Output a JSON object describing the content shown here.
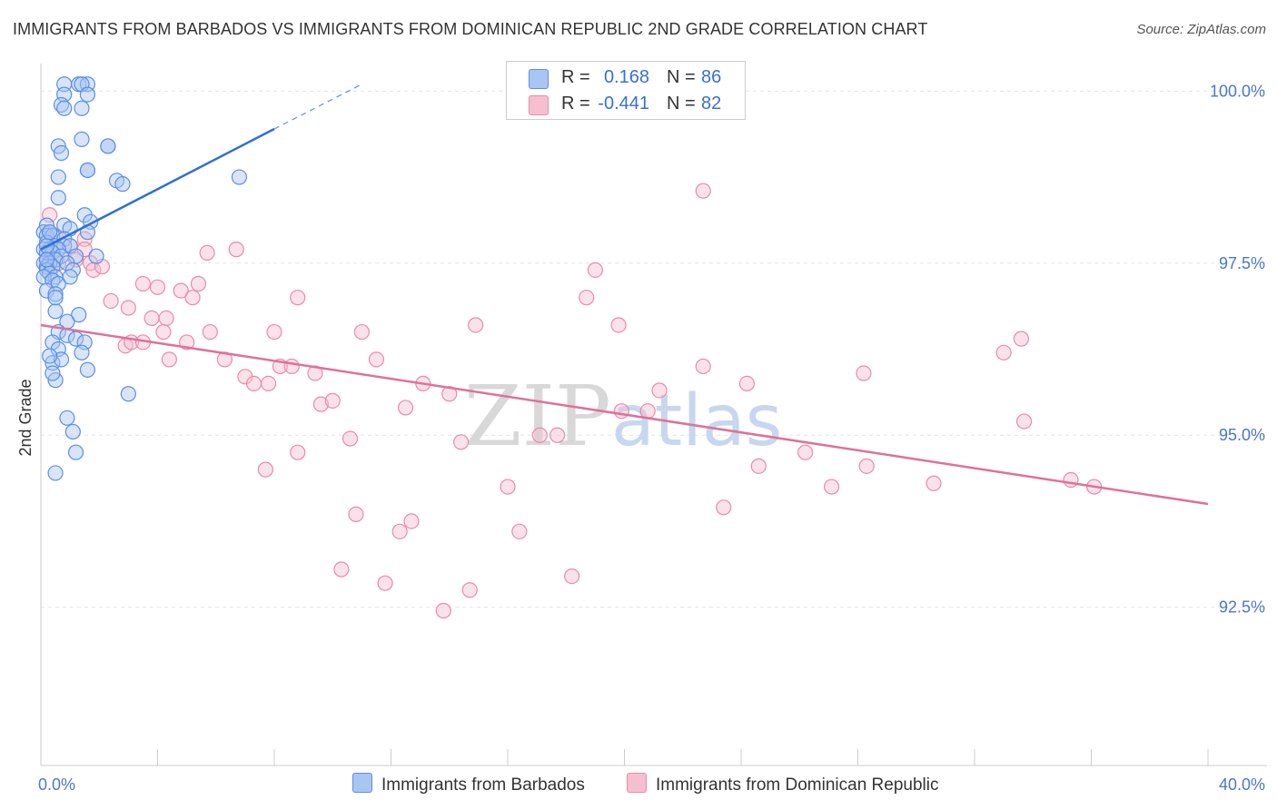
{
  "title": "IMMIGRANTS FROM BARBADOS VS IMMIGRANTS FROM DOMINICAN REPUBLIC 2ND GRADE CORRELATION CHART",
  "source": "Source: ZipAtlas.com",
  "watermark": "ZIPatlas",
  "colors": {
    "blue": "#5b8ee6",
    "blue_fill": "#a9c5f2",
    "blue_line": "#2f6fd6",
    "pink": "#e98aa8",
    "pink_fill": "#f6bfd0",
    "pink_line": "#e0709a",
    "accent_text": "#3a6fd0"
  },
  "legend": {
    "rows": [
      {
        "r_label": "R =",
        "r_value": "0.168",
        "n_label": "N =",
        "n_value": "86",
        "series": "blue"
      },
      {
        "r_label": "R =",
        "r_value": "-0.441",
        "n_label": "N =",
        "n_value": "82",
        "series": "pink"
      }
    ]
  },
  "bottom_legend": {
    "barbados": "Immigrants from Barbados",
    "dominican": "Immigrants from Dominican Republic"
  },
  "chart_data": {
    "type": "scatter",
    "title": "IMMIGRANTS FROM BARBADOS VS IMMIGRANTS FROM DOMINICAN REPUBLIC 2ND GRADE CORRELATION CHART",
    "xlabel": "",
    "ylabel": "2nd Grade",
    "xlim": [
      0,
      40
    ],
    "ylim": [
      90.2,
      100.4
    ],
    "x_tick_labels": [
      "0.0%",
      "40.0%"
    ],
    "y_ticks": [
      92.5,
      95.0,
      97.5,
      100.0
    ],
    "y_tick_labels": [
      "92.5%",
      "95.0%",
      "97.5%",
      "100.0%"
    ],
    "grid": "horizontal dashed",
    "legend_position": "top-center",
    "series": [
      {
        "name": "Immigrants from Barbados",
        "color": "blue",
        "r": 0.168,
        "n": 86,
        "trend": {
          "x": [
            0,
            8.0
          ],
          "y": [
            97.7,
            99.45
          ],
          "dashed_to": [
            11.0,
            100.1
          ]
        },
        "points": [
          [
            0.8,
            100.1
          ],
          [
            1.3,
            100.1
          ],
          [
            1.6,
            100.1
          ],
          [
            1.4,
            100.1
          ],
          [
            1.6,
            99.95
          ],
          [
            0.8,
            99.95
          ],
          [
            0.7,
            99.8
          ],
          [
            0.8,
            99.75
          ],
          [
            1.4,
            99.75
          ],
          [
            1.4,
            99.3
          ],
          [
            2.3,
            99.2
          ],
          [
            2.3,
            99.2
          ],
          [
            0.6,
            99.2
          ],
          [
            0.7,
            99.1
          ],
          [
            1.6,
            98.85
          ],
          [
            1.6,
            98.85
          ],
          [
            0.6,
            98.75
          ],
          [
            2.6,
            98.7
          ],
          [
            2.8,
            98.65
          ],
          [
            6.8,
            98.75
          ],
          [
            0.6,
            98.45
          ],
          [
            1.5,
            98.2
          ],
          [
            1.7,
            98.1
          ],
          [
            0.2,
            98.05
          ],
          [
            0.8,
            98.05
          ],
          [
            1.0,
            98.0
          ],
          [
            1.6,
            97.95
          ],
          [
            0.1,
            97.95
          ],
          [
            0.3,
            97.95
          ],
          [
            0.2,
            97.9
          ],
          [
            0.4,
            97.9
          ],
          [
            0.8,
            97.85
          ],
          [
            0.2,
            97.8
          ],
          [
            0.5,
            97.75
          ],
          [
            0.8,
            97.75
          ],
          [
            1.0,
            97.75
          ],
          [
            0.3,
            97.7
          ],
          [
            0.1,
            97.7
          ],
          [
            0.6,
            97.7
          ],
          [
            0.2,
            97.65
          ],
          [
            0.4,
            97.65
          ],
          [
            0.7,
            97.6
          ],
          [
            1.2,
            97.6
          ],
          [
            1.9,
            97.6
          ],
          [
            0.2,
            97.55
          ],
          [
            0.5,
            97.55
          ],
          [
            0.1,
            97.5
          ],
          [
            0.3,
            97.5
          ],
          [
            0.9,
            97.5
          ],
          [
            0.2,
            97.45
          ],
          [
            0.4,
            97.45
          ],
          [
            1.1,
            97.4
          ],
          [
            0.2,
            97.4
          ],
          [
            0.3,
            97.35
          ],
          [
            0.5,
            97.3
          ],
          [
            0.1,
            97.3
          ],
          [
            0.4,
            97.25
          ],
          [
            0.6,
            97.2
          ],
          [
            0.2,
            97.1
          ],
          [
            0.5,
            97.05
          ],
          [
            0.5,
            96.8
          ],
          [
            1.3,
            96.75
          ],
          [
            0.9,
            96.65
          ],
          [
            0.6,
            96.5
          ],
          [
            0.9,
            96.45
          ],
          [
            1.2,
            96.4
          ],
          [
            0.4,
            96.35
          ],
          [
            1.5,
            96.35
          ],
          [
            0.6,
            96.25
          ],
          [
            1.4,
            96.2
          ],
          [
            0.4,
            96.05
          ],
          [
            0.7,
            96.1
          ],
          [
            1.6,
            95.95
          ],
          [
            0.5,
            95.8
          ],
          [
            0.4,
            95.9
          ],
          [
            3.0,
            95.6
          ],
          [
            0.9,
            95.25
          ],
          [
            1.1,
            95.05
          ],
          [
            1.2,
            94.75
          ],
          [
            0.5,
            94.45
          ],
          [
            0.3,
            96.15
          ],
          [
            0.5,
            97.0
          ],
          [
            1.0,
            97.3
          ],
          [
            0.2,
            97.75
          ],
          [
            0.3,
            97.95
          ],
          [
            0.2,
            97.55
          ]
        ]
      },
      {
        "name": "Immigrants from Dominican Republic",
        "color": "pink",
        "r": -0.441,
        "n": 82,
        "trend": {
          "x": [
            0,
            40
          ],
          "y": [
            96.6,
            94.0
          ]
        },
        "points": [
          [
            0.3,
            98.2
          ],
          [
            0.5,
            97.9
          ],
          [
            1.0,
            97.75
          ],
          [
            1.5,
            97.85
          ],
          [
            0.6,
            97.5
          ],
          [
            1.7,
            97.5
          ],
          [
            1.8,
            97.4
          ],
          [
            2.1,
            97.45
          ],
          [
            1.2,
            97.55
          ],
          [
            1.5,
            97.7
          ],
          [
            2.4,
            96.95
          ],
          [
            2.9,
            96.3
          ],
          [
            3.0,
            96.85
          ],
          [
            3.1,
            96.35
          ],
          [
            3.5,
            97.2
          ],
          [
            3.8,
            96.7
          ],
          [
            3.5,
            96.35
          ],
          [
            4.0,
            97.15
          ],
          [
            4.2,
            96.5
          ],
          [
            4.3,
            96.7
          ],
          [
            4.4,
            96.1
          ],
          [
            4.8,
            97.1
          ],
          [
            5.0,
            96.35
          ],
          [
            5.2,
            97.0
          ],
          [
            5.4,
            97.2
          ],
          [
            5.7,
            97.65
          ],
          [
            5.8,
            96.5
          ],
          [
            6.3,
            96.1
          ],
          [
            6.7,
            97.7
          ],
          [
            7.0,
            95.85
          ],
          [
            7.3,
            95.75
          ],
          [
            7.7,
            94.5
          ],
          [
            7.8,
            95.75
          ],
          [
            8.0,
            96.5
          ],
          [
            8.2,
            96.0
          ],
          [
            8.6,
            96.0
          ],
          [
            8.8,
            97.0
          ],
          [
            8.8,
            94.75
          ],
          [
            9.4,
            95.9
          ],
          [
            9.6,
            95.45
          ],
          [
            10.0,
            95.5
          ],
          [
            10.3,
            93.05
          ],
          [
            10.6,
            94.95
          ],
          [
            10.8,
            93.85
          ],
          [
            11.0,
            96.5
          ],
          [
            11.5,
            96.1
          ],
          [
            11.8,
            92.85
          ],
          [
            12.3,
            93.6
          ],
          [
            12.5,
            95.4
          ],
          [
            12.7,
            93.75
          ],
          [
            13.1,
            95.75
          ],
          [
            13.8,
            92.45
          ],
          [
            14.0,
            95.6
          ],
          [
            14.4,
            94.9
          ],
          [
            14.7,
            92.75
          ],
          [
            14.9,
            96.6
          ],
          [
            16.0,
            94.25
          ],
          [
            16.4,
            93.6
          ],
          [
            17.1,
            95.0
          ],
          [
            17.7,
            95.0
          ],
          [
            18.2,
            92.95
          ],
          [
            18.7,
            97.0
          ],
          [
            19.0,
            97.4
          ],
          [
            19.8,
            96.6
          ],
          [
            19.9,
            95.35
          ],
          [
            20.8,
            95.35
          ],
          [
            21.2,
            95.65
          ],
          [
            22.7,
            96.0
          ],
          [
            23.4,
            93.95
          ],
          [
            24.2,
            95.75
          ],
          [
            24.6,
            94.55
          ],
          [
            26.2,
            94.75
          ],
          [
            27.1,
            94.25
          ],
          [
            28.2,
            95.9
          ],
          [
            28.3,
            94.55
          ],
          [
            30.6,
            94.3
          ],
          [
            33.0,
            96.2
          ],
          [
            33.6,
            96.4
          ],
          [
            33.7,
            95.2
          ],
          [
            35.3,
            94.35
          ],
          [
            36.1,
            94.25
          ],
          [
            22.7,
            98.55
          ]
        ]
      }
    ]
  }
}
